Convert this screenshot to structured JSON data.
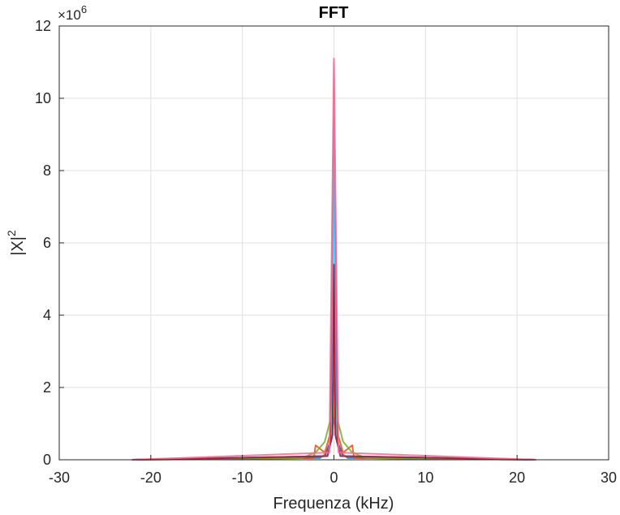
{
  "chart_data": {
    "type": "line",
    "title": "FFT",
    "xlabel": "Frequenza (kHz)",
    "ylabel_base": "|X|",
    "ylabel_sup": "2",
    "xlim": [
      -30,
      30
    ],
    "ylim": [
      0,
      12
    ],
    "y_multiplier_prefix": "×10",
    "y_multiplier_exp": "6",
    "xticks": [
      "-30",
      "-20",
      "-10",
      "0",
      "10",
      "20",
      "30"
    ],
    "yticks": [
      "0",
      "2",
      "4",
      "6",
      "8",
      "10",
      "12"
    ],
    "grid": true,
    "series": [
      {
        "color": "#0072BD",
        "x": [
          -22.05,
          -1.5,
          -1.0,
          -0.6,
          -0.3,
          -0.1,
          0,
          0.1,
          0.3,
          0.6,
          1.0,
          1.5,
          22.05
        ],
        "y": [
          0,
          0.05,
          0.15,
          0.3,
          0.6,
          1.0,
          5.0,
          1.0,
          0.6,
          0.3,
          0.15,
          0.05,
          0
        ]
      },
      {
        "color": "#D95319",
        "x": [
          -22.05,
          -2.2,
          -2.0,
          -1.0,
          -0.2,
          0,
          0.2,
          1.0,
          2.0,
          2.2,
          22.05
        ],
        "y": [
          0,
          0.05,
          0.4,
          0.2,
          0.9,
          3.4,
          0.9,
          0.2,
          0.4,
          0.05,
          0
        ]
      },
      {
        "color": "#EDB120",
        "x": [
          -22.05,
          -1.2,
          -0.5,
          -0.1,
          0,
          0.1,
          0.5,
          1.2,
          22.05
        ],
        "y": [
          0,
          0.1,
          0.35,
          1.2,
          2.9,
          1.2,
          0.35,
          0.1,
          0
        ]
      },
      {
        "color": "#7E2F8E",
        "x": [
          -22.05,
          -1.0,
          -0.4,
          0,
          0.4,
          1.0,
          22.05
        ],
        "y": [
          0,
          0.1,
          0.5,
          9.4,
          0.5,
          0.1,
          0
        ]
      },
      {
        "color": "#77AC30",
        "x": [
          -22.05,
          -3.5,
          -2.0,
          -1.0,
          -0.3,
          0,
          0.3,
          1.0,
          2.0,
          3.5,
          22.05
        ],
        "y": [
          0,
          0.05,
          0.2,
          0.5,
          1.2,
          2.2,
          1.2,
          0.5,
          0.2,
          0.05,
          0
        ]
      },
      {
        "color": "#4DBEEE",
        "x": [
          -22.05,
          -0.8,
          -0.2,
          0,
          0.2,
          0.8,
          22.05
        ],
        "y": [
          0,
          0.1,
          0.6,
          11.0,
          0.6,
          0.1,
          0
        ]
      },
      {
        "color": "#A2142F",
        "x": [
          -22.05,
          -0.7,
          -0.15,
          0,
          0.15,
          0.7,
          22.05
        ],
        "y": [
          0,
          0.1,
          0.7,
          5.4,
          0.7,
          0.1,
          0
        ]
      },
      {
        "color": "#FF6688",
        "x": [
          -22.05,
          -0.5,
          0,
          0.5,
          22.05
        ],
        "y": [
          0,
          0.2,
          11.1,
          0.2,
          0
        ]
      }
    ]
  }
}
